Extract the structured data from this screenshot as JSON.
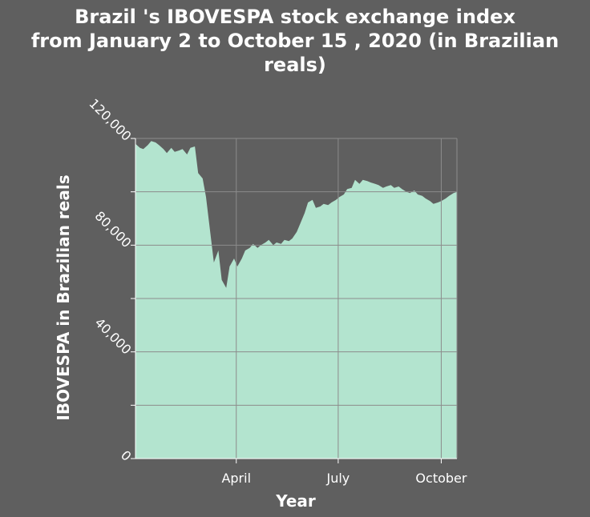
{
  "chart_data": {
    "type": "area",
    "title_lines": [
      "Brazil 's IBOVESPA stock exchange index",
      "from January 2 to October 15 , 2020 (in Brazilian",
      "reals)"
    ],
    "title": "Brazil 's IBOVESPA stock exchange index from January 2 to October 15 , 2020 (in Brazilian reals)",
    "xlabel": "Year",
    "ylabel": "IBOVESPA in Brazilian reals",
    "ylim": [
      0,
      120000
    ],
    "y_ticks": [
      0,
      20000,
      40000,
      60000,
      80000,
      100000,
      120000
    ],
    "y_tick_labels": [
      "0",
      "",
      "40,000",
      "",
      "80,000",
      "",
      "120,000"
    ],
    "x_range": [
      "2020-01-02",
      "2020-10-15"
    ],
    "x_ticks": [
      {
        "date": "2020-04-01",
        "label": "April"
      },
      {
        "date": "2020-07-01",
        "label": "July"
      },
      {
        "date": "2020-10-01",
        "label": "October"
      }
    ],
    "grid": true,
    "fill_color": "#b3e4cf",
    "background_color": "#5f5f5f",
    "grid_color": "#8c8c8c",
    "series": [
      {
        "x": [
          "2020-01-02",
          "2020-01-06",
          "2020-01-09",
          "2020-01-13",
          "2020-01-16",
          "2020-01-20",
          "2020-01-23",
          "2020-01-27",
          "2020-01-30",
          "2020-02-03",
          "2020-02-06",
          "2020-02-10",
          "2020-02-13",
          "2020-02-17",
          "2020-02-20",
          "2020-02-24",
          "2020-02-27",
          "2020-03-02",
          "2020-03-05",
          "2020-03-09",
          "2020-03-12",
          "2020-03-16",
          "2020-03-19",
          "2020-03-23",
          "2020-03-26",
          "2020-03-30",
          "2020-04-02",
          "2020-04-06",
          "2020-04-09",
          "2020-04-13",
          "2020-04-16",
          "2020-04-20",
          "2020-04-23",
          "2020-04-27",
          "2020-04-30",
          "2020-05-04",
          "2020-05-07",
          "2020-05-11",
          "2020-05-14",
          "2020-05-18",
          "2020-05-21",
          "2020-05-25",
          "2020-05-28",
          "2020-06-01",
          "2020-06-04",
          "2020-06-08",
          "2020-06-11",
          "2020-06-15",
          "2020-06-18",
          "2020-06-22",
          "2020-06-25",
          "2020-06-29",
          "2020-07-02",
          "2020-07-06",
          "2020-07-09",
          "2020-07-13",
          "2020-07-16",
          "2020-07-20",
          "2020-07-23",
          "2020-07-27",
          "2020-07-30",
          "2020-08-03",
          "2020-08-06",
          "2020-08-10",
          "2020-08-13",
          "2020-08-17",
          "2020-08-20",
          "2020-08-24",
          "2020-08-27",
          "2020-08-31",
          "2020-09-03",
          "2020-09-07",
          "2020-09-10",
          "2020-09-14",
          "2020-09-17",
          "2020-09-21",
          "2020-09-24",
          "2020-09-28",
          "2020-10-01",
          "2020-10-05",
          "2020-10-08",
          "2020-10-12",
          "2020-10-15"
        ],
        "values": [
          118000,
          116500,
          116000,
          117500,
          119000,
          118500,
          117500,
          116000,
          114500,
          116500,
          115000,
          115500,
          116000,
          114000,
          116500,
          117000,
          107000,
          105000,
          98000,
          84000,
          73500,
          78000,
          67000,
          64000,
          72000,
          75000,
          72000,
          75000,
          78000,
          79000,
          80500,
          79000,
          80000,
          81000,
          82000,
          80000,
          81000,
          80500,
          82000,
          81500,
          82500,
          85000,
          88000,
          92000,
          96000,
          97000,
          94000,
          94500,
          95500,
          95000,
          96000,
          97000,
          98000,
          99000,
          101000,
          101500,
          104500,
          103000,
          104500,
          104000,
          103500,
          103000,
          102500,
          101500,
          102000,
          102500,
          101500,
          102000,
          101000,
          100000,
          99500,
          100500,
          99000,
          98500,
          97500,
          96500,
          95500,
          96000,
          96500,
          97500,
          98500,
          99500,
          100000
        ]
      }
    ]
  }
}
